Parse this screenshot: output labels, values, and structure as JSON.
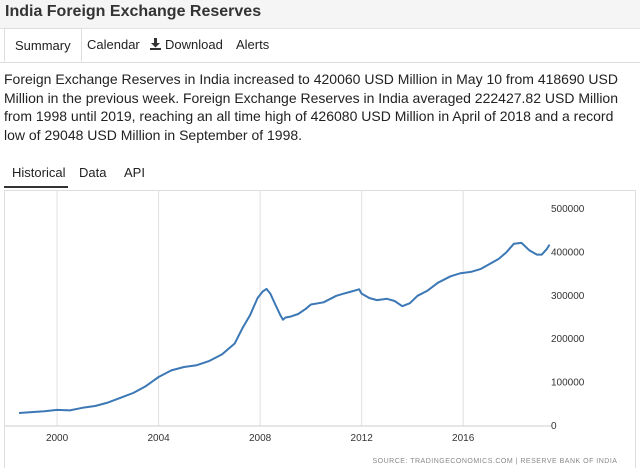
{
  "page": {
    "title": "India Foreign Exchange Reserves"
  },
  "nav": {
    "tabs": [
      {
        "label": "Summary",
        "active": true
      },
      {
        "label": "Calendar",
        "active": false
      },
      {
        "label": "Download",
        "active": false,
        "icon": "download-icon"
      },
      {
        "label": "Alerts",
        "active": false
      }
    ]
  },
  "description": "Foreign Exchange Reserves in India increased to 420060 USD Million in May 10 from 418690 USD Million in the previous week. Foreign Exchange Reserves in India averaged 222427.82 USD Million from 1998 until 2019, reaching an all time high of 426080 USD Million in April of 2018 and a record low of 29048 USD Million in September of 1998.",
  "sub_tabs": [
    {
      "label": "Historical",
      "active": true
    },
    {
      "label": "Data",
      "active": false
    },
    {
      "label": "API",
      "active": false
    }
  ],
  "source": "SOURCE: TRADINGECONOMICS.COM | RESERVE BANK OF INDIA",
  "colors": {
    "line": "#3b78b5",
    "grid": "#e0e0e0",
    "axis_text": "#333333",
    "source_text": "#888888"
  },
  "chart_data": {
    "type": "line",
    "title": "",
    "xlabel": "",
    "ylabel": "",
    "xlim": [
      1998.5,
      2019.5
    ],
    "ylim": [
      0,
      500000
    ],
    "x_ticks": [
      2000,
      2004,
      2008,
      2012,
      2016
    ],
    "x_tick_labels": [
      "2000",
      "2004",
      "2008",
      "2012",
      "2016"
    ],
    "y_ticks": [
      100000,
      200000,
      300000,
      400000,
      500000
    ],
    "y_tick_labels": [
      "100000",
      "200000",
      "300000",
      "400000",
      "500000"
    ],
    "y_axis_position": "right",
    "grid": "vertical",
    "series": [
      {
        "name": "",
        "x": [
          1998.5,
          1999.0,
          1999.5,
          2000.0,
          2000.5,
          2001.0,
          2001.5,
          2002.0,
          2002.5,
          2003.0,
          2003.5,
          2004.0,
          2004.5,
          2005.0,
          2005.5,
          2006.0,
          2006.5,
          2007.0,
          2007.3,
          2007.6,
          2007.9,
          2008.1,
          2008.25,
          2008.4,
          2008.6,
          2008.8,
          2008.9,
          2009.0,
          2009.2,
          2009.5,
          2009.8,
          2010.0,
          2010.5,
          2011.0,
          2011.3,
          2011.6,
          2011.9,
          2012.0,
          2012.3,
          2012.6,
          2013.0,
          2013.3,
          2013.6,
          2013.9,
          2014.2,
          2014.6,
          2015.0,
          2015.5,
          2015.9,
          2016.3,
          2016.7,
          2017.0,
          2017.4,
          2017.7,
          2018.0,
          2018.3,
          2018.6,
          2018.9,
          2019.1,
          2019.3,
          2019.4
        ],
        "y": [
          30000,
          32000,
          34000,
          37000,
          36000,
          42000,
          46000,
          54000,
          65000,
          76000,
          92000,
          113000,
          128000,
          136000,
          140000,
          150000,
          165000,
          190000,
          225000,
          255000,
          295000,
          310000,
          316000,
          305000,
          280000,
          255000,
          245000,
          250000,
          252000,
          258000,
          270000,
          280000,
          285000,
          300000,
          305000,
          310000,
          315000,
          305000,
          295000,
          290000,
          293000,
          288000,
          276000,
          283000,
          300000,
          312000,
          330000,
          345000,
          352000,
          355000,
          362000,
          372000,
          385000,
          400000,
          420000,
          422000,
          405000,
          395000,
          395000,
          408000,
          418000
        ]
      }
    ]
  }
}
